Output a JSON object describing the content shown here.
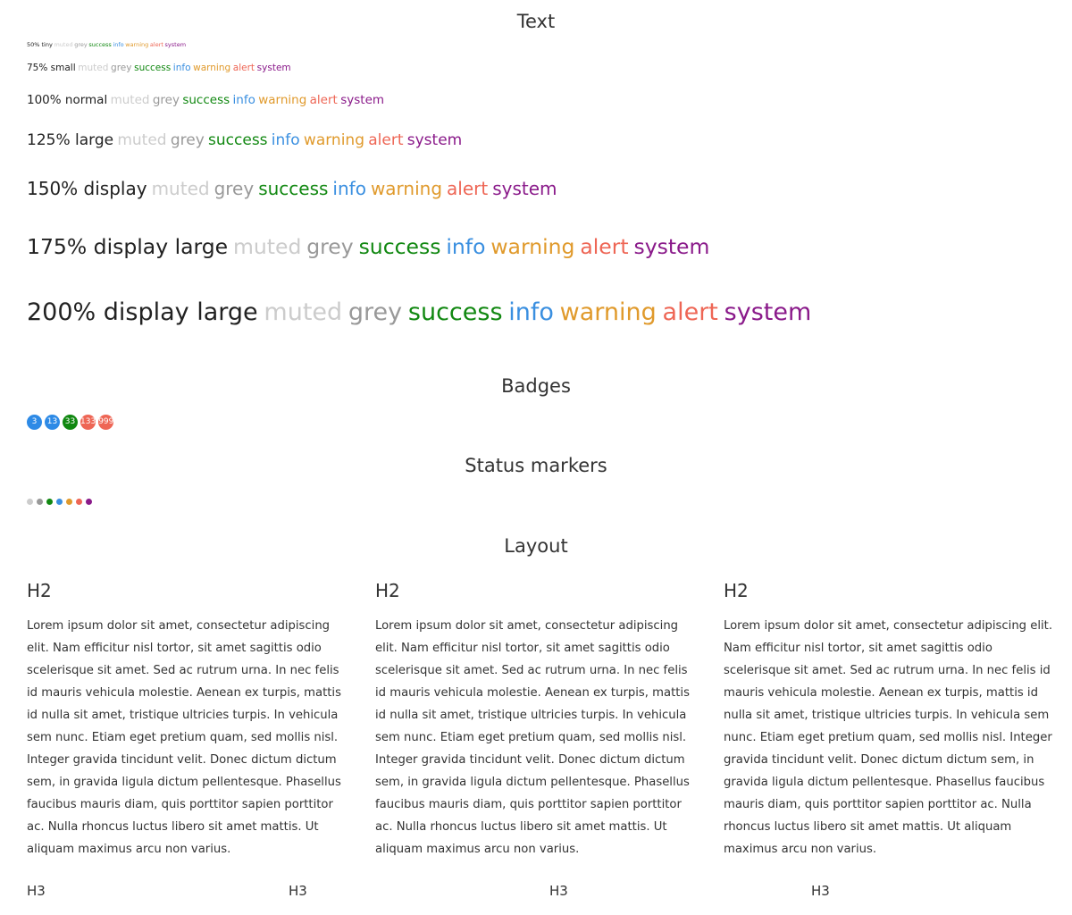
{
  "sections": {
    "text": "Text",
    "badges": "Badges",
    "status_markers": "Status markers",
    "layout": "Layout"
  },
  "text_rows": [
    {
      "label": "50% tiny"
    },
    {
      "label": "75% small"
    },
    {
      "label": "100% normal"
    },
    {
      "label": "125% large"
    },
    {
      "label": "150% display"
    },
    {
      "label": "175% display large"
    },
    {
      "label": "200% display large"
    }
  ],
  "color_words": {
    "muted": "muted",
    "grey": "grey",
    "success": "success",
    "info": "info",
    "warning": "warning",
    "alert": "alert",
    "system": "system"
  },
  "colors": {
    "muted": "#cccccc",
    "grey": "#999999",
    "success": "#118811",
    "info": "#3a8fe0",
    "warning": "#e09a2c",
    "alert": "#ee6655",
    "system": "#8a1a8a"
  },
  "badges": [
    {
      "value": "3",
      "color": "#2d8ae6"
    },
    {
      "value": "13",
      "color": "#2d8ae6"
    },
    {
      "value": "33",
      "color": "#118811"
    },
    {
      "value": "133",
      "color": "#ee6655"
    },
    {
      "value": "999",
      "color": "#ee6655"
    }
  ],
  "status_markers": [
    {
      "name": "muted",
      "color": "#cccccc"
    },
    {
      "name": "grey",
      "color": "#999999"
    },
    {
      "name": "success",
      "color": "#118811"
    },
    {
      "name": "info",
      "color": "#3a8fe0"
    },
    {
      "name": "warning",
      "color": "#e09a2c"
    },
    {
      "name": "alert",
      "color": "#ee6655"
    },
    {
      "name": "system",
      "color": "#8a1a8a"
    }
  ],
  "layout": {
    "columns": [
      {
        "heading": "H2",
        "body": "Lorem ipsum dolor sit amet, consectetur adipiscing elit. Nam efficitur nisl tortor, sit amet sagittis odio scelerisque sit amet. Sed ac rutrum urna. In nec felis id mauris vehicula molestie. Aenean ex turpis, mattis id nulla sit amet, tristique ultricies turpis. In vehicula sem nunc. Etiam eget pretium quam, sed mollis nisl. Integer gravida tincidunt velit. Donec dictum dictum sem, in gravida ligula dictum pellentesque. Phasellus faucibus mauris diam, quis porttitor sapien porttitor ac. Nulla rhoncus luctus libero sit amet mattis. Ut aliquam maximus arcu non varius."
      },
      {
        "heading": "H2",
        "body": "Lorem ipsum dolor sit amet, consectetur adipiscing elit. Nam efficitur nisl tortor, sit amet sagittis odio scelerisque sit amet. Sed ac rutrum urna. In nec felis id mauris vehicula molestie. Aenean ex turpis, mattis id nulla sit amet, tristique ultricies turpis. In vehicula sem nunc. Etiam eget pretium quam, sed mollis nisl. Integer gravida tincidunt velit. Donec dictum dictum sem, in gravida ligula dictum pellentesque. Phasellus faucibus mauris diam, quis porttitor sapien porttitor ac. Nulla rhoncus luctus libero sit amet mattis. Ut aliquam maximus arcu non varius."
      },
      {
        "heading": "H2",
        "body": "Lorem ipsum dolor sit amet, consectetur adipiscing elit. Nam efficitur nisl tortor, sit amet sagittis odio scelerisque sit amet. Sed ac rutrum urna. In nec felis id mauris vehicula molestie. Aenean ex turpis, mattis id nulla sit amet, tristique ultricies turpis. In vehicula sem nunc. Etiam eget pretium quam, sed mollis nisl. Integer gravida tincidunt velit. Donec dictum dictum sem, in gravida ligula dictum pellentesque. Phasellus faucibus mauris diam, quis porttitor sapien porttitor ac. Nulla rhoncus luctus libero sit amet mattis. Ut aliquam maximus arcu non varius."
      }
    ],
    "subheadings": [
      "H3",
      "H3",
      "H3",
      "H3"
    ]
  }
}
